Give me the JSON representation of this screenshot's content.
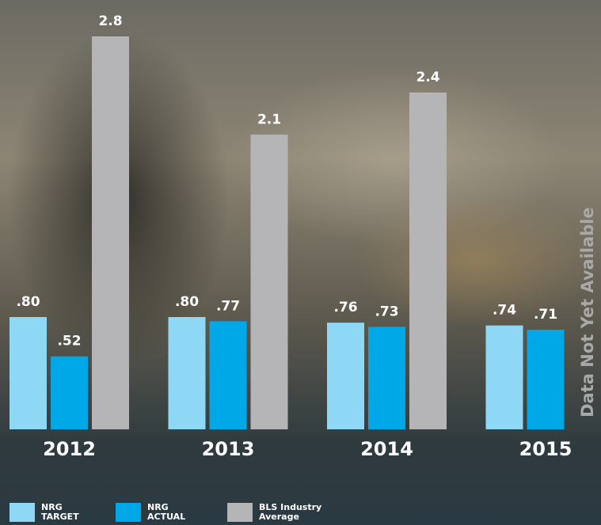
{
  "chart_data": {
    "type": "bar",
    "categories": [
      "2012",
      "2013",
      "2014",
      "2015"
    ],
    "series": [
      {
        "name": "NRG TARGET",
        "color": "#8fd8f5",
        "values": [
          0.8,
          0.8,
          0.76,
          0.74
        ],
        "value_labels": [
          ".80",
          ".80",
          ".76",
          ".74"
        ]
      },
      {
        "name": "NRG ACTUAL",
        "color": "#00a8e8",
        "values": [
          0.52,
          0.77,
          0.73,
          0.71
        ],
        "value_labels": [
          ".52",
          ".77",
          ".73",
          ".71"
        ]
      },
      {
        "name": "BLS Industry Average",
        "color": "#b5b5b8",
        "values": [
          2.8,
          2.1,
          2.4,
          null
        ],
        "value_labels": [
          "2.8",
          "2.1",
          "2.4",
          null
        ]
      }
    ],
    "annotation": "Data Not Yet Available"
  }
}
